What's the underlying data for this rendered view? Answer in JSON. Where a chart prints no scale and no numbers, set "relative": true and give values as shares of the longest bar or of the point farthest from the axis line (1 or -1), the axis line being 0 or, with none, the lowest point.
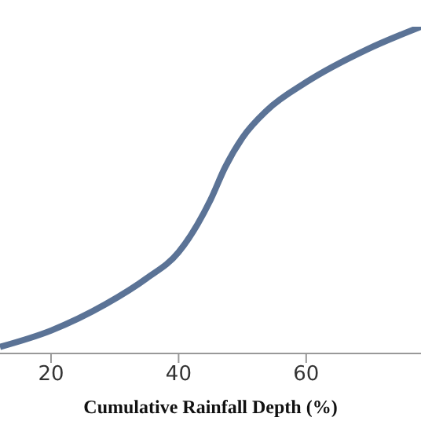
{
  "chart_data": {
    "type": "line",
    "xlabel": "Cumulative  Rainfall Depth (%)",
    "relative": true,
    "xlim": [
      12,
      78
    ],
    "xticks": [
      20,
      40,
      60
    ],
    "marker": "none",
    "line_style": "solid",
    "series": [
      {
        "color": "#5b7396",
        "x": [
          12,
          20,
          28.5,
          35,
          40,
          45,
          47.3,
          50,
          53.9,
          60,
          69.5,
          78
        ],
        "values": [
          0.02,
          0.07,
          0.15,
          0.23,
          0.31,
          0.47,
          0.57,
          0.66,
          0.745,
          0.83,
          0.93,
          1.0
        ]
      }
    ]
  }
}
